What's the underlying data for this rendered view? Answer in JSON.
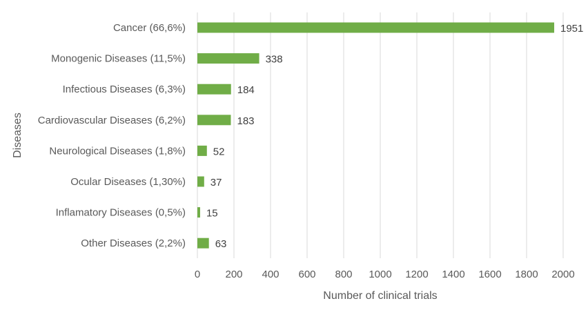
{
  "chart_data": {
    "type": "bar",
    "orientation": "horizontal",
    "categories": [
      "Cancer (66,6%)",
      "Monogenic Diseases (11,5%)",
      "Infectious Diseases (6,3%)",
      "Cardiovascular Diseases (6,2%)",
      "Neurological Diseases (1,8%)",
      "Ocular Diseases (1,30%)",
      "Inflamatory Diseases (0,5%)",
      "Other Diseases (2,2%)"
    ],
    "values": [
      1951,
      338,
      184,
      183,
      52,
      37,
      15,
      63
    ],
    "xlabel": "Number of clinical trials",
    "ylabel": "Diseases",
    "xlim": [
      0,
      2000
    ],
    "xticks": [
      0,
      200,
      400,
      600,
      800,
      1000,
      1200,
      1400,
      1600,
      1800,
      2000
    ],
    "grid": "vertical",
    "legend": "none",
    "bar_color": "#70ad47",
    "grid_color": "#d9d9d9"
  }
}
